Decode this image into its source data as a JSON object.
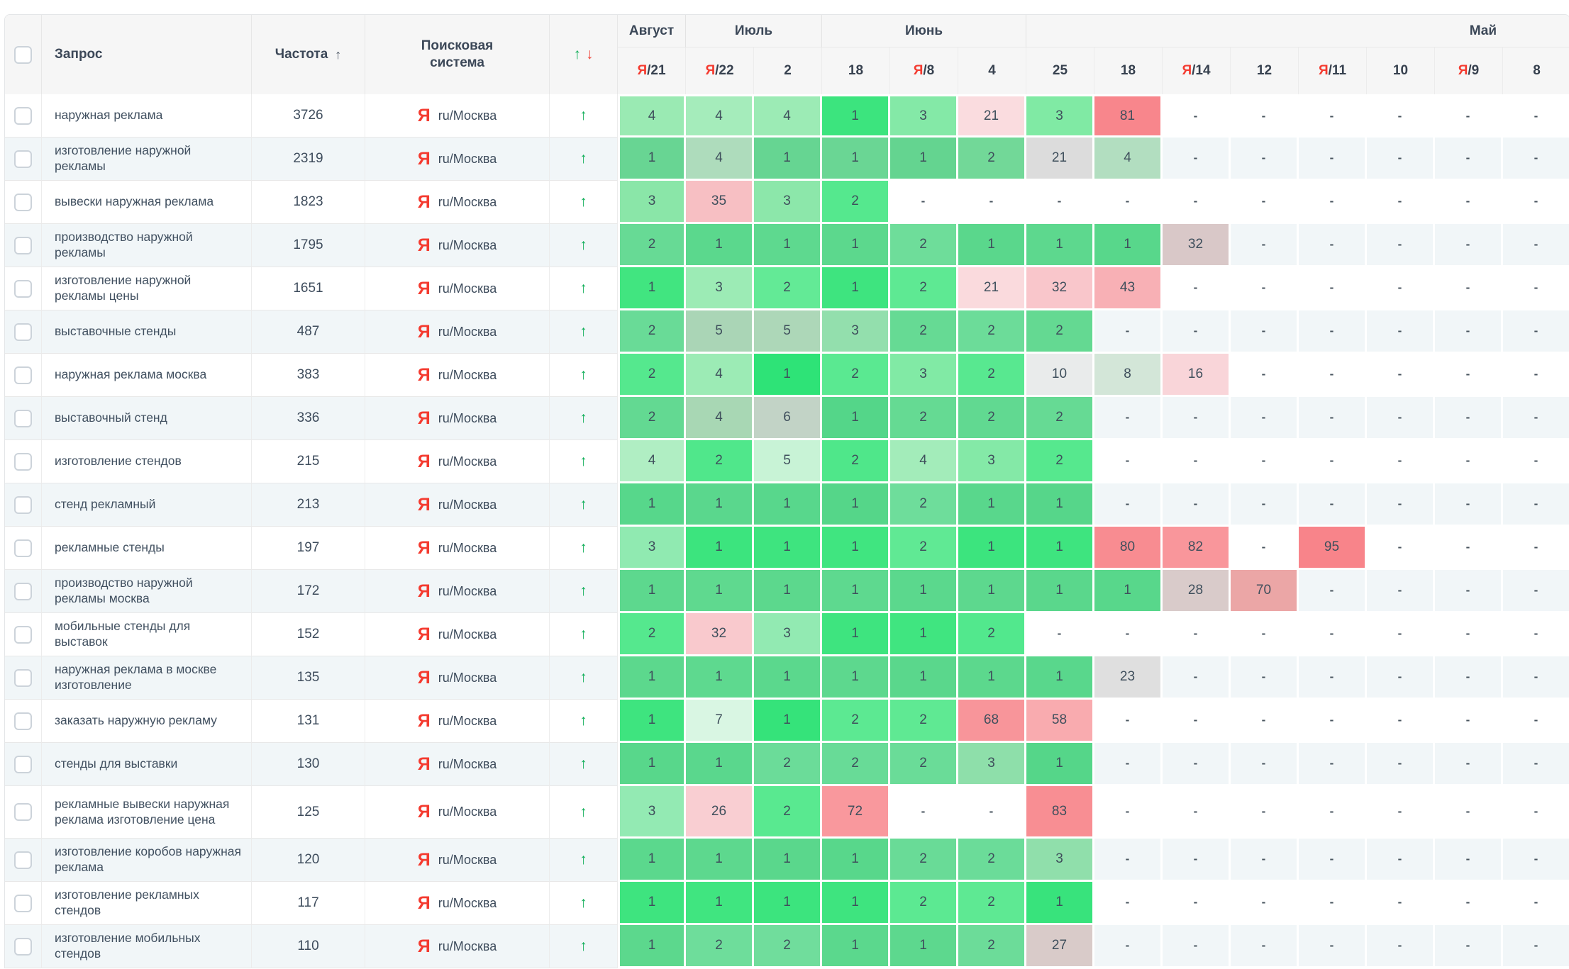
{
  "header": {
    "query_label": "Запрос",
    "frequency_label": "Частота",
    "frequency_sort_icon": "↑",
    "search_engine_label": "Поисковая система",
    "trend_up": "↑",
    "trend_down": "↓",
    "months": [
      {
        "label": "Август",
        "span": 1
      },
      {
        "label": "Июль",
        "span": 2
      },
      {
        "label": "Июнь",
        "span": 3
      },
      {
        "label": "Май",
        "span": 8,
        "align": "right"
      }
    ],
    "dates": [
      {
        "ya": "Я",
        "day": "21"
      },
      {
        "ya": "Я",
        "day": "22"
      },
      {
        "day": "2"
      },
      {
        "day": "18"
      },
      {
        "ya": "Я",
        "day": "8"
      },
      {
        "day": "4"
      },
      {
        "day": "25"
      },
      {
        "day": "18"
      },
      {
        "ya": "Я",
        "day": "14"
      },
      {
        "day": "12"
      },
      {
        "ya": "Я",
        "day": "11"
      },
      {
        "day": "10"
      },
      {
        "ya": "Я",
        "day": "9"
      },
      {
        "day": "8"
      }
    ]
  },
  "engine": {
    "icon": "Я",
    "label": "ru/Москва"
  },
  "trend": {
    "row_icon": "↑"
  },
  "colors": {
    "stripe_row": "#f1f6f8",
    "accent_green": "#0fae58",
    "accent_red": "#f0453a",
    "yandex_red": "#f43b30",
    "header_bg": "#f6f6f6"
  },
  "rows": [
    {
      "query": "наружная реклама",
      "frequency": "3726",
      "cells": [
        [
          "4",
          "#9aeab3"
        ],
        [
          "4",
          "#a5ecbb"
        ],
        [
          "4",
          "#9cebb5"
        ],
        [
          "1",
          "#3ce47e"
        ],
        [
          "3",
          "#84e9a7"
        ],
        [
          "21",
          "#fadcdf"
        ],
        [
          "3",
          "#80eaa4"
        ],
        [
          "81",
          "#f8868c"
        ],
        [
          "-",
          null
        ],
        [
          "-",
          null
        ],
        [
          "-",
          null
        ],
        [
          "-",
          null
        ],
        [
          "-",
          null
        ],
        [
          "-",
          null
        ]
      ]
    },
    {
      "query": "изготовление наружной рекламы",
      "frequency": "2319",
      "cells": [
        [
          "1",
          "#68d593"
        ],
        [
          "4",
          "#aedcbc"
        ],
        [
          "1",
          "#66d592"
        ],
        [
          "1",
          "#6ad694"
        ],
        [
          "1",
          "#64d490"
        ],
        [
          "2",
          "#72d898"
        ],
        [
          "21",
          "#dcdcdc"
        ],
        [
          "4",
          "#b2dec0"
        ],
        [
          "-",
          null
        ],
        [
          "-",
          null
        ],
        [
          "-",
          null
        ],
        [
          "-",
          null
        ],
        [
          "-",
          null
        ],
        [
          "-",
          null
        ]
      ]
    },
    {
      "query": "вывески наружная реклама",
      "frequency": "1823",
      "cells": [
        [
          "3",
          "#8ae6a8"
        ],
        [
          "35",
          "#f7bfc3"
        ],
        [
          "3",
          "#8ce7aa"
        ],
        [
          "2",
          "#55e88e"
        ],
        [
          "-",
          null
        ],
        [
          "-",
          null
        ],
        [
          "-",
          null
        ],
        [
          "-",
          null
        ],
        [
          "-",
          null
        ],
        [
          "-",
          null
        ],
        [
          "-",
          null
        ],
        [
          "-",
          null
        ],
        [
          "-",
          null
        ],
        [
          "-",
          null
        ]
      ]
    },
    {
      "query": "производство наружной рекламы",
      "frequency": "1795",
      "cells": [
        [
          "2",
          "#67da95"
        ],
        [
          "1",
          "#5bd88d"
        ],
        [
          "1",
          "#5ed98f"
        ],
        [
          "1",
          "#5cd88d"
        ],
        [
          "2",
          "#6edd9a"
        ],
        [
          "1",
          "#5ad78c"
        ],
        [
          "1",
          "#5dd88e"
        ],
        [
          "1",
          "#58d78b"
        ],
        [
          "32",
          "#d9c8c8"
        ],
        [
          "-",
          null
        ],
        [
          "-",
          null
        ],
        [
          "-",
          null
        ],
        [
          "-",
          null
        ],
        [
          "-",
          null
        ]
      ]
    },
    {
      "query": "изготовление наружной рекламы цены",
      "frequency": "1651",
      "cells": [
        [
          "1",
          "#41e580"
        ],
        [
          "3",
          "#9cebb5"
        ],
        [
          "2",
          "#63ea96"
        ],
        [
          "1",
          "#3ee47f"
        ],
        [
          "2",
          "#5ee993"
        ],
        [
          "21",
          "#fadadd"
        ],
        [
          "32",
          "#f9c6cb"
        ],
        [
          "43",
          "#f8b0b5"
        ],
        [
          "-",
          null
        ],
        [
          "-",
          null
        ],
        [
          "-",
          null
        ],
        [
          "-",
          null
        ],
        [
          "-",
          null
        ],
        [
          "-",
          null
        ]
      ]
    },
    {
      "query": "выставочные стенды",
      "frequency": "487",
      "cells": [
        [
          "2",
          "#69db97"
        ],
        [
          "5",
          "#aad5b6"
        ],
        [
          "5",
          "#add7b8"
        ],
        [
          "3",
          "#93dfad"
        ],
        [
          "2",
          "#66da94"
        ],
        [
          "2",
          "#6cdc99"
        ],
        [
          "2",
          "#64d992"
        ],
        [
          "-",
          null
        ],
        [
          "-",
          null
        ],
        [
          "-",
          null
        ],
        [
          "-",
          null
        ],
        [
          "-",
          null
        ],
        [
          "-",
          null
        ],
        [
          "-",
          null
        ]
      ]
    },
    {
      "query": "наружная реклама москва",
      "frequency": "383",
      "cells": [
        [
          "2",
          "#55e88e"
        ],
        [
          "4",
          "#9cebb5"
        ],
        [
          "1",
          "#2ee377"
        ],
        [
          "2",
          "#5ae991"
        ],
        [
          "3",
          "#81eaa5"
        ],
        [
          "2",
          "#58e890"
        ],
        [
          "10",
          "#e9ebeb"
        ],
        [
          "8",
          "#d3e6d8"
        ],
        [
          "16",
          "#f9d5d9"
        ],
        [
          "-",
          null
        ],
        [
          "-",
          null
        ],
        [
          "-",
          null
        ],
        [
          "-",
          null
        ],
        [
          "-",
          null
        ]
      ]
    },
    {
      "query": "выставочный стенд",
      "frequency": "336",
      "cells": [
        [
          "2",
          "#63d992"
        ],
        [
          "4",
          "#a8d7b4"
        ],
        [
          "6",
          "#c2d3c6"
        ],
        [
          "1",
          "#54d689"
        ],
        [
          "2",
          "#65da93"
        ],
        [
          "2",
          "#61d991"
        ],
        [
          "2",
          "#66da94"
        ],
        [
          "-",
          null
        ],
        [
          "-",
          null
        ],
        [
          "-",
          null
        ],
        [
          "-",
          null
        ],
        [
          "-",
          null
        ],
        [
          "-",
          null
        ],
        [
          "-",
          null
        ]
      ]
    },
    {
      "query": "изготовление стендов",
      "frequency": "215",
      "cells": [
        [
          "4",
          "#b0eec3"
        ],
        [
          "2",
          "#50e78b"
        ],
        [
          "5",
          "#c8f3d6"
        ],
        [
          "2",
          "#4fe78a"
        ],
        [
          "4",
          "#a3ecba"
        ],
        [
          "3",
          "#84e9a7"
        ],
        [
          "2",
          "#56e88e"
        ],
        [
          "-",
          null
        ],
        [
          "-",
          null
        ],
        [
          "-",
          null
        ],
        [
          "-",
          null
        ],
        [
          "-",
          null
        ],
        [
          "-",
          null
        ],
        [
          "-",
          null
        ]
      ]
    },
    {
      "query": "стенд рекламный",
      "frequency": "213",
      "cells": [
        [
          "1",
          "#57d78b"
        ],
        [
          "1",
          "#5ad78d"
        ],
        [
          "1",
          "#58d78c"
        ],
        [
          "1",
          "#55d689"
        ],
        [
          "2",
          "#6edd9b"
        ],
        [
          "1",
          "#59d78c"
        ],
        [
          "1",
          "#56d68a"
        ],
        [
          "-",
          null
        ],
        [
          "-",
          null
        ],
        [
          "-",
          null
        ],
        [
          "-",
          null
        ],
        [
          "-",
          null
        ],
        [
          "-",
          null
        ],
        [
          "-",
          null
        ]
      ]
    },
    {
      "query": "рекламные стенды",
      "frequency": "197",
      "cells": [
        [
          "3",
          "#90eab1"
        ],
        [
          "1",
          "#3ce47e"
        ],
        [
          "1",
          "#3ee47f"
        ],
        [
          "1",
          "#40e580"
        ],
        [
          "2",
          "#60e994"
        ],
        [
          "1",
          "#3ce47e"
        ],
        [
          "1",
          "#3ee47f"
        ],
        [
          "80",
          "#f88c91"
        ],
        [
          "82",
          "#f9969b"
        ],
        [
          "-",
          null
        ],
        [
          "95",
          "#f8848a"
        ],
        [
          "-",
          null
        ],
        [
          "-",
          null
        ],
        [
          "-",
          null
        ]
      ]
    },
    {
      "query": "производство наружной рекламы москва",
      "frequency": "172",
      "cells": [
        [
          "1",
          "#5dd88e"
        ],
        [
          "1",
          "#5fd98f"
        ],
        [
          "1",
          "#5cd88d"
        ],
        [
          "1",
          "#5ed98f"
        ],
        [
          "1",
          "#5bd88d"
        ],
        [
          "1",
          "#5dd88e"
        ],
        [
          "1",
          "#5ad78c"
        ],
        [
          "1",
          "#58d78b"
        ],
        [
          "28",
          "#d9cbca"
        ],
        [
          "70",
          "#eba6a6"
        ],
        [
          "-",
          null
        ],
        [
          "-",
          null
        ],
        [
          "-",
          null
        ],
        [
          "-",
          null
        ]
      ]
    },
    {
      "query": "мобильные стенды для выставок",
      "frequency": "152",
      "cells": [
        [
          "2",
          "#55e88e"
        ],
        [
          "32",
          "#f9c9cd"
        ],
        [
          "3",
          "#92eab2"
        ],
        [
          "1",
          "#3ee47f"
        ],
        [
          "1",
          "#40e580"
        ],
        [
          "2",
          "#52e88d"
        ],
        [
          "-",
          null
        ],
        [
          "-",
          null
        ],
        [
          "-",
          null
        ],
        [
          "-",
          null
        ],
        [
          "-",
          null
        ],
        [
          "-",
          null
        ],
        [
          "-",
          null
        ],
        [
          "-",
          null
        ]
      ]
    },
    {
      "query": "наружная реклама в москве изготовление",
      "frequency": "135",
      "cells": [
        [
          "1",
          "#5cd88d"
        ],
        [
          "1",
          "#5ed98f"
        ],
        [
          "1",
          "#5bd88d"
        ],
        [
          "1",
          "#5dd88e"
        ],
        [
          "1",
          "#5ad78c"
        ],
        [
          "1",
          "#5cd88d"
        ],
        [
          "1",
          "#59d78c"
        ],
        [
          "23",
          "#dfdfdf"
        ],
        [
          "-",
          null
        ],
        [
          "-",
          null
        ],
        [
          "-",
          null
        ],
        [
          "-",
          null
        ],
        [
          "-",
          null
        ],
        [
          "-",
          null
        ]
      ]
    },
    {
      "query": "заказать наружную рекламу",
      "frequency": "131",
      "cells": [
        [
          "1",
          "#3ee47f"
        ],
        [
          "7",
          "#d9f6e3"
        ],
        [
          "1",
          "#35e37a"
        ],
        [
          "2",
          "#5ce992"
        ],
        [
          "2",
          "#5fe993"
        ],
        [
          "68",
          "#f8959a"
        ],
        [
          "58",
          "#f9abaf"
        ],
        [
          "-",
          null
        ],
        [
          "-",
          null
        ],
        [
          "-",
          null
        ],
        [
          "-",
          null
        ],
        [
          "-",
          null
        ],
        [
          "-",
          null
        ],
        [
          "-",
          null
        ]
      ]
    },
    {
      "query": "стенды для выставки",
      "frequency": "130",
      "cells": [
        [
          "1",
          "#58d78b"
        ],
        [
          "1",
          "#5ad78d"
        ],
        [
          "2",
          "#6bdc99"
        ],
        [
          "2",
          "#68db97"
        ],
        [
          "2",
          "#6adc98"
        ],
        [
          "3",
          "#8edfaa"
        ],
        [
          "1",
          "#55d689"
        ],
        [
          "-",
          null
        ],
        [
          "-",
          null
        ],
        [
          "-",
          null
        ],
        [
          "-",
          null
        ],
        [
          "-",
          null
        ],
        [
          "-",
          null
        ],
        [
          "-",
          null
        ]
      ]
    },
    {
      "query": "рекламные вывески наружная реклама изготовление цена",
      "frequency": "125",
      "tall": true,
      "cells": [
        [
          "3",
          "#93eab3"
        ],
        [
          "26",
          "#f9ced2"
        ],
        [
          "2",
          "#59e990"
        ],
        [
          "72",
          "#f9989d"
        ],
        [
          "-",
          null
        ],
        [
          "-",
          null
        ],
        [
          "83",
          "#f88e93"
        ],
        [
          "-",
          null
        ],
        [
          "-",
          null
        ],
        [
          "-",
          null
        ],
        [
          "-",
          null
        ],
        [
          "-",
          null
        ],
        [
          "-",
          null
        ],
        [
          "-",
          null
        ]
      ]
    },
    {
      "query": "изготовление коробов наружная реклама",
      "frequency": "120",
      "cells": [
        [
          "1",
          "#5bd88d"
        ],
        [
          "1",
          "#5dd88e"
        ],
        [
          "1",
          "#5ad78c"
        ],
        [
          "1",
          "#58d78b"
        ],
        [
          "2",
          "#69db97"
        ],
        [
          "2",
          "#6bdc99"
        ],
        [
          "3",
          "#90dfab"
        ],
        [
          "-",
          null
        ],
        [
          "-",
          null
        ],
        [
          "-",
          null
        ],
        [
          "-",
          null
        ],
        [
          "-",
          null
        ],
        [
          "-",
          null
        ],
        [
          "-",
          null
        ]
      ]
    },
    {
      "query": "изготовление рекламных стендов",
      "frequency": "117",
      "cells": [
        [
          "1",
          "#3ee47f"
        ],
        [
          "1",
          "#40e580"
        ],
        [
          "1",
          "#3ce47e"
        ],
        [
          "1",
          "#3ee47f"
        ],
        [
          "2",
          "#5ce992"
        ],
        [
          "2",
          "#5ee993"
        ],
        [
          "1",
          "#38e37c"
        ],
        [
          "-",
          null
        ],
        [
          "-",
          null
        ],
        [
          "-",
          null
        ],
        [
          "-",
          null
        ],
        [
          "-",
          null
        ],
        [
          "-",
          null
        ],
        [
          "-",
          null
        ]
      ]
    },
    {
      "query": "изготовление мобильных стендов",
      "frequency": "110",
      "cells": [
        [
          "1",
          "#5cd88d"
        ],
        [
          "2",
          "#6edd9b"
        ],
        [
          "2",
          "#70dd9c"
        ],
        [
          "1",
          "#5bd88d"
        ],
        [
          "1",
          "#5dd88e"
        ],
        [
          "2",
          "#6cdc99"
        ],
        [
          "27",
          "#d9cbc9"
        ],
        [
          "-",
          null
        ],
        [
          "-",
          null
        ],
        [
          "-",
          null
        ],
        [
          "-",
          null
        ],
        [
          "-",
          null
        ],
        [
          "-",
          null
        ],
        [
          "-",
          null
        ]
      ]
    }
  ]
}
